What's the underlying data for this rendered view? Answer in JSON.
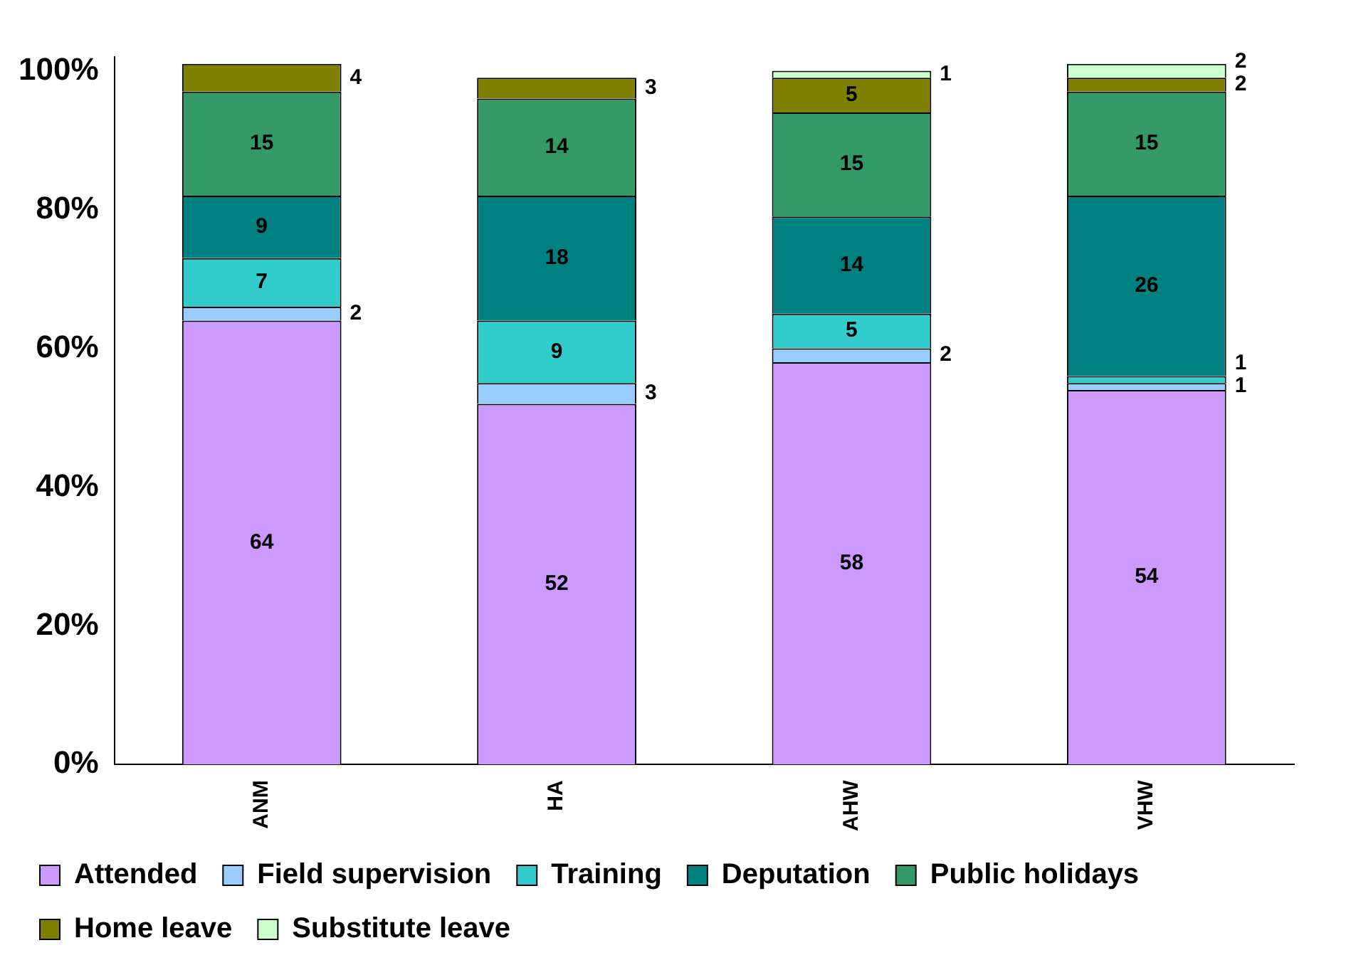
{
  "chart_data": {
    "type": "bar",
    "stacked": true,
    "categories": [
      "ANM",
      "HA",
      "AHW",
      "VHW"
    ],
    "series": [
      {
        "name": "Attended",
        "color": "#cc99ff",
        "values": [
          64,
          52,
          58,
          54
        ]
      },
      {
        "name": "Field supervision",
        "color": "#99ccff",
        "values": [
          2,
          3,
          2,
          1
        ]
      },
      {
        "name": "Training",
        "color": "#33cccc",
        "values": [
          7,
          9,
          5,
          1
        ]
      },
      {
        "name": "Deputation",
        "color": "#008080",
        "values": [
          9,
          18,
          14,
          26
        ]
      },
      {
        "name": "Public holidays",
        "color": "#339966",
        "values": [
          15,
          14,
          15,
          15
        ]
      },
      {
        "name": "Home leave",
        "color": "#808000",
        "values": [
          4,
          3,
          5,
          2
        ]
      },
      {
        "name": "Substitute leave",
        "color": "#ccffcc",
        "values": [
          null,
          null,
          1,
          2
        ]
      }
    ],
    "ylim": [
      0,
      102
    ],
    "yticks": [
      {
        "value": 0,
        "label": "0%"
      },
      {
        "value": 20,
        "label": "20%"
      },
      {
        "value": 40,
        "label": "40%"
      },
      {
        "value": 60,
        "label": "60%"
      },
      {
        "value": 80,
        "label": "80%"
      },
      {
        "value": 100,
        "label": "100%"
      }
    ],
    "data_labels": true,
    "grid": false,
    "legend": "bottom"
  }
}
